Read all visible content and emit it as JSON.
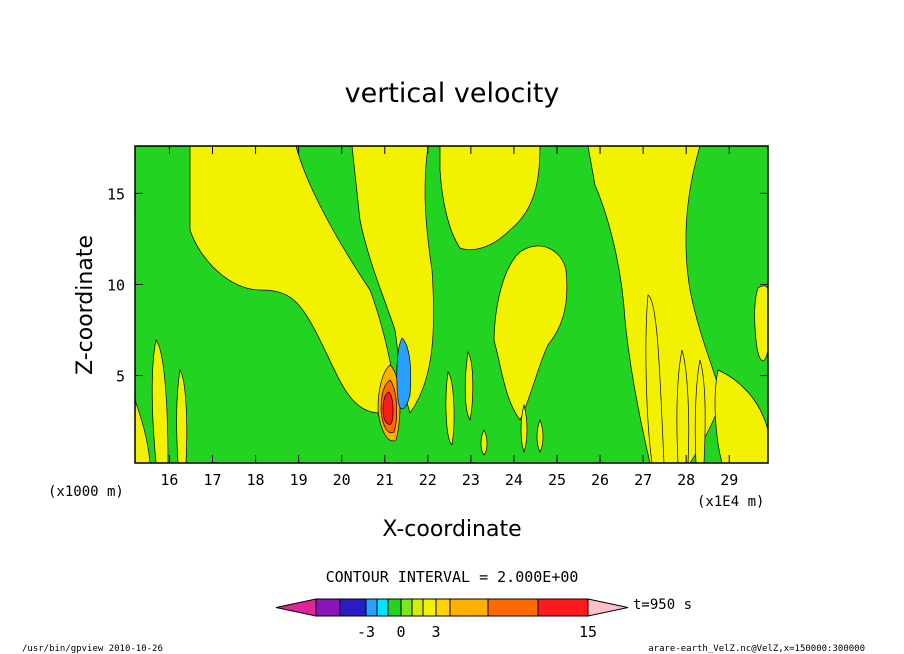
{
  "chart_data": {
    "type": "heatmap",
    "title": "vertical velocity",
    "xlabel": "X-coordinate",
    "ylabel": "Z-coordinate",
    "xlim": [
      15.2,
      29.9
    ],
    "ylim": [
      0.2,
      17.6
    ],
    "x_ticks": [
      "16",
      "17",
      "18",
      "19",
      "20",
      "21",
      "22",
      "23",
      "24",
      "25",
      "26",
      "27",
      "28",
      "29"
    ],
    "y_ticks": [
      "5",
      "10",
      "15"
    ],
    "x_unit": "(x1E4 m)",
    "y_unit": "(x1000 m)",
    "contour_interval_label": "CONTOUR INTERVAL = 2.000E+00",
    "time_label": "t=950 s",
    "colorbar": {
      "colors": [
        "#e0259a",
        "#8a14bb",
        "#2a1cc4",
        "#0020ff",
        "#27a1ff",
        "#00e5ff",
        "#22d322",
        "#7fe61a",
        "#d2f000",
        "#f2f200",
        "#ffd400",
        "#ffb000",
        "#ff6a00",
        "#ff1b1b",
        "#ff7f7f",
        "#ffc0c8"
      ],
      "labels": [
        "-3",
        "0",
        "3",
        "15"
      ]
    }
  },
  "footer": {
    "left": "/usr/bin/gpview   2010-10-26",
    "right": "arare-earth_VelZ.nc@VelZ,x=150000:300000"
  }
}
